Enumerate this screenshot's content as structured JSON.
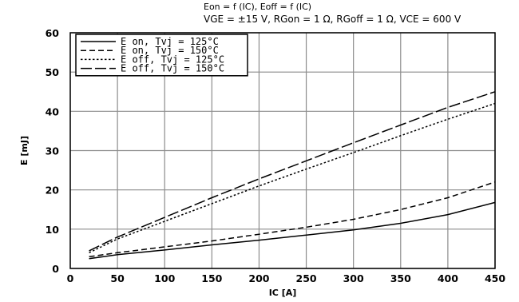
{
  "chart_data": {
    "type": "line",
    "title_lines": [
      "Eon = f (IC), Eoff = f (IC)",
      "VGE = ±15 V, RGon = 1 Ω, RGoff = 1 Ω, VCE = 600 V"
    ],
    "xlabel": "IC [A]",
    "ylabel": "E [mJ]",
    "xlim": [
      0,
      450
    ],
    "ylim": [
      0,
      60
    ],
    "xticks": [
      0,
      50,
      100,
      150,
      200,
      250,
      300,
      350,
      400,
      450
    ],
    "yticks": [
      0,
      10,
      20,
      30,
      40,
      50,
      60
    ],
    "grid": true,
    "legend_position": "top-left",
    "x": [
      20,
      50,
      100,
      150,
      200,
      250,
      300,
      350,
      400,
      450
    ],
    "series": [
      {
        "name": "E on, Tvj = 125°C",
        "dash": "solid",
        "values": [
          2.5,
          3.5,
          4.7,
          6.0,
          7.2,
          8.5,
          9.8,
          11.5,
          13.7,
          16.8
        ]
      },
      {
        "name": "E on, Tvj = 150°C",
        "dash": "dashed",
        "values": [
          3.0,
          4.0,
          5.5,
          7.0,
          8.7,
          10.5,
          12.5,
          15.0,
          18.0,
          22.0
        ]
      },
      {
        "name": "E off, Tvj = 125°C",
        "dash": "dotted",
        "values": [
          4.0,
          7.5,
          12.0,
          16.5,
          21.0,
          25.3,
          29.5,
          33.8,
          38.0,
          42.0
        ]
      },
      {
        "name": "E off, Tvj = 150°C",
        "dash": "longdash",
        "values": [
          4.5,
          8.0,
          13.0,
          18.0,
          22.8,
          27.4,
          32.0,
          36.5,
          41.0,
          45.0
        ]
      }
    ]
  }
}
